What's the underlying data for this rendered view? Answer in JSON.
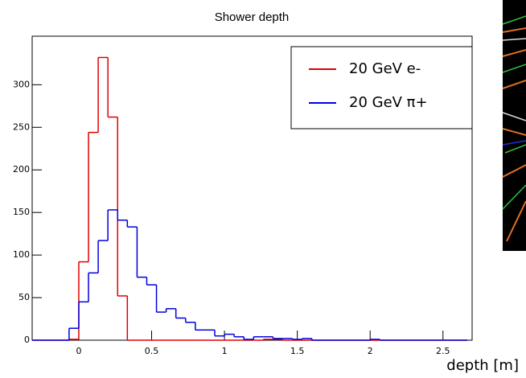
{
  "chart_data": {
    "type": "histogram",
    "title": "Shower depth",
    "x_label": "depth [m]",
    "bins": [
      -0.3333,
      -0.2667,
      -0.2,
      -0.1333,
      -0.0667,
      0,
      0.0667,
      0.1333,
      0.2,
      0.2667,
      0.3333,
      0.4,
      0.4667,
      0.5333,
      0.6,
      0.6667,
      0.7333,
      0.8,
      0.8667,
      0.9333,
      1,
      1.0667,
      1.1333,
      1.2,
      1.2667,
      1.3333,
      1.4,
      1.4667,
      1.5333,
      1.6,
      1.6667,
      1.7333,
      1.8,
      1.8667,
      1.9333,
      2,
      2.0667,
      2.1333,
      2.2,
      2.2667,
      2.3333,
      2.4,
      2.4667,
      2.5333,
      2.6,
      2.6667
    ],
    "series": [
      {
        "name": "20 GeV e-",
        "color": "#e00000",
        "values": [
          0,
          0,
          0,
          0,
          1,
          92,
          244,
          332,
          262,
          52,
          0,
          0,
          0,
          0,
          0,
          0,
          0,
          0,
          0,
          0,
          0,
          0,
          0,
          0,
          1,
          1,
          0,
          0,
          0,
          0,
          0,
          0,
          0,
          0,
          0,
          0,
          0,
          0,
          0,
          0,
          0,
          0,
          0,
          0,
          0
        ]
      },
      {
        "name": "20 GeV π+",
        "color": "#0000e0",
        "values": [
          0,
          0,
          0,
          0,
          14,
          45,
          79,
          117,
          153,
          141,
          133,
          74,
          65,
          33,
          37,
          26,
          21,
          12,
          12,
          5,
          7,
          4,
          1,
          4,
          4,
          2,
          2,
          1,
          2,
          0,
          0,
          0,
          0,
          0,
          0,
          1,
          0,
          0,
          0,
          0,
          0,
          0,
          0,
          0,
          0
        ]
      }
    ],
    "xlim": [
      -0.32,
      2.7
    ],
    "ylim": [
      0,
      357
    ],
    "xticks": [
      0,
      0.5,
      1,
      1.5,
      2,
      2.5
    ],
    "yticks": [
      0,
      50,
      100,
      150,
      200,
      250,
      300
    ],
    "legend": "upper right"
  }
}
